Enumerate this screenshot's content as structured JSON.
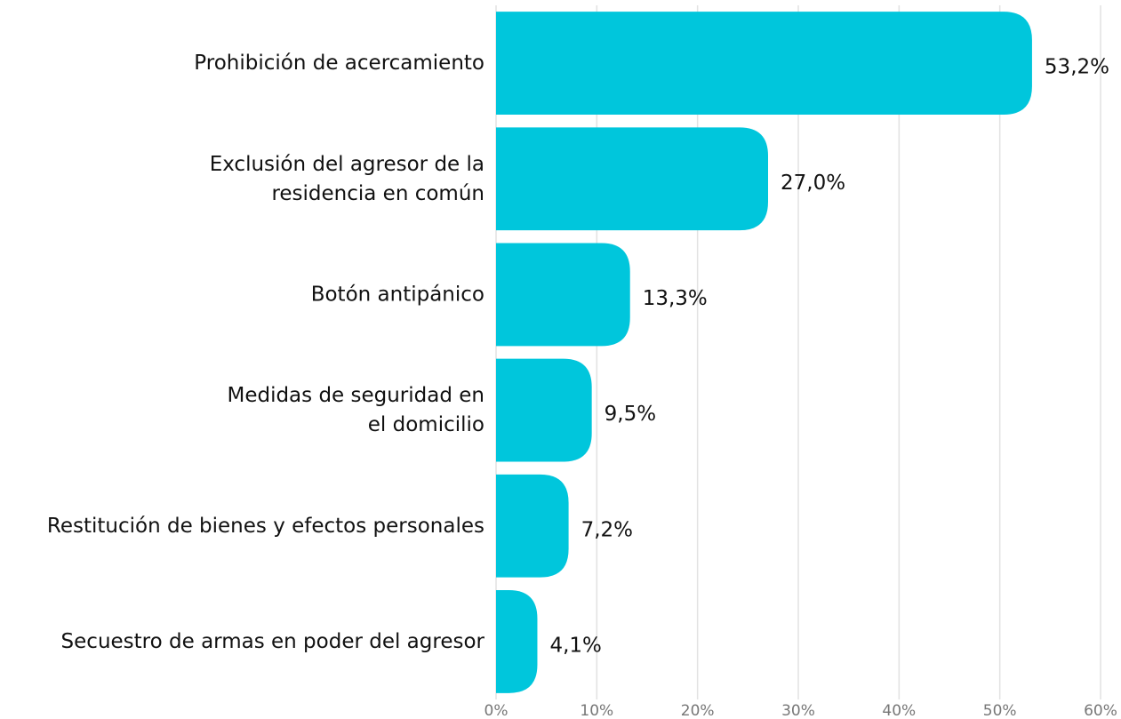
{
  "chart_data": {
    "type": "hbar",
    "categories": [
      [
        "Prohibición de acercamiento"
      ],
      [
        "Exclusión del agresor de la",
        "residencia en común"
      ],
      [
        "Botón antipánico"
      ],
      [
        "Medidas de seguridad en",
        "el domicilio"
      ],
      [
        "Restitución de bienes y efectos personales"
      ],
      [
        "Secuestro de armas en poder del agresor"
      ]
    ],
    "values": [
      53.2,
      27.0,
      13.3,
      9.5,
      7.2,
      4.1
    ],
    "value_labels": [
      "53,2%",
      "27,0%",
      "13,3%",
      "9,5%",
      "7,2%",
      "4,1%"
    ],
    "color": "#00c6dc",
    "xlim": [
      0,
      60
    ],
    "xticks": [
      {
        "value": 0,
        "label": "0%"
      },
      {
        "value": 10,
        "label": "10%"
      },
      {
        "value": 20,
        "label": "20%"
      },
      {
        "value": 30,
        "label": "30%"
      },
      {
        "value": 40,
        "label": "40%"
      },
      {
        "value": 50,
        "label": "50%"
      },
      {
        "value": 60,
        "label": "60%"
      }
    ],
    "grid": true
  }
}
